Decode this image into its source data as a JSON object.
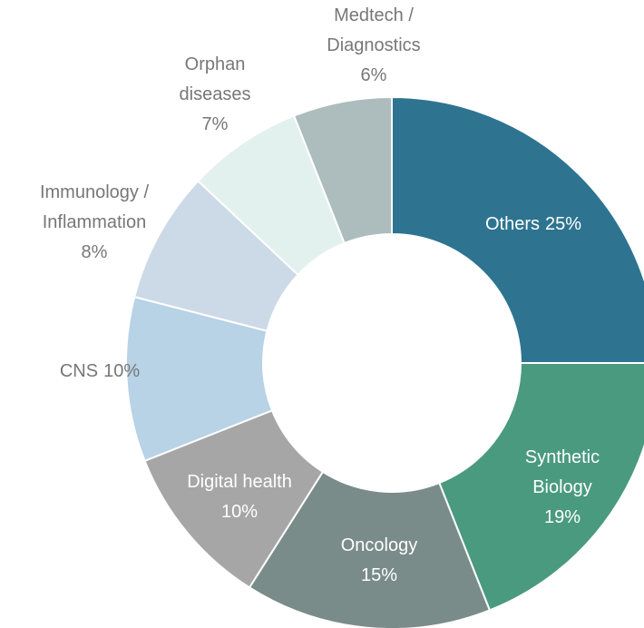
{
  "chart_data": {
    "type": "donut",
    "categories": [
      [
        "Others"
      ],
      [
        "Synthetic",
        "Biology"
      ],
      [
        "Oncology"
      ],
      [
        "Digital health"
      ],
      [
        "CNS"
      ],
      [
        "Immunology /",
        "Inflammation"
      ],
      [
        "Orphan",
        "diseases"
      ],
      [
        "Medtech /",
        "Diagnostics"
      ]
    ],
    "values": [
      25,
      19,
      15,
      10,
      10,
      8,
      7,
      6
    ],
    "value_labels": [
      "25%",
      "19%",
      "15%",
      "10%",
      "10%",
      "8%",
      "7%",
      "6%"
    ],
    "colors": [
      "#2e7490",
      "#4a9a80",
      "#7a8c8a",
      "#a6a6a6",
      "#b8d2e6",
      "#ccd9e6",
      "#e3f1ee",
      "#adbcbc"
    ]
  }
}
